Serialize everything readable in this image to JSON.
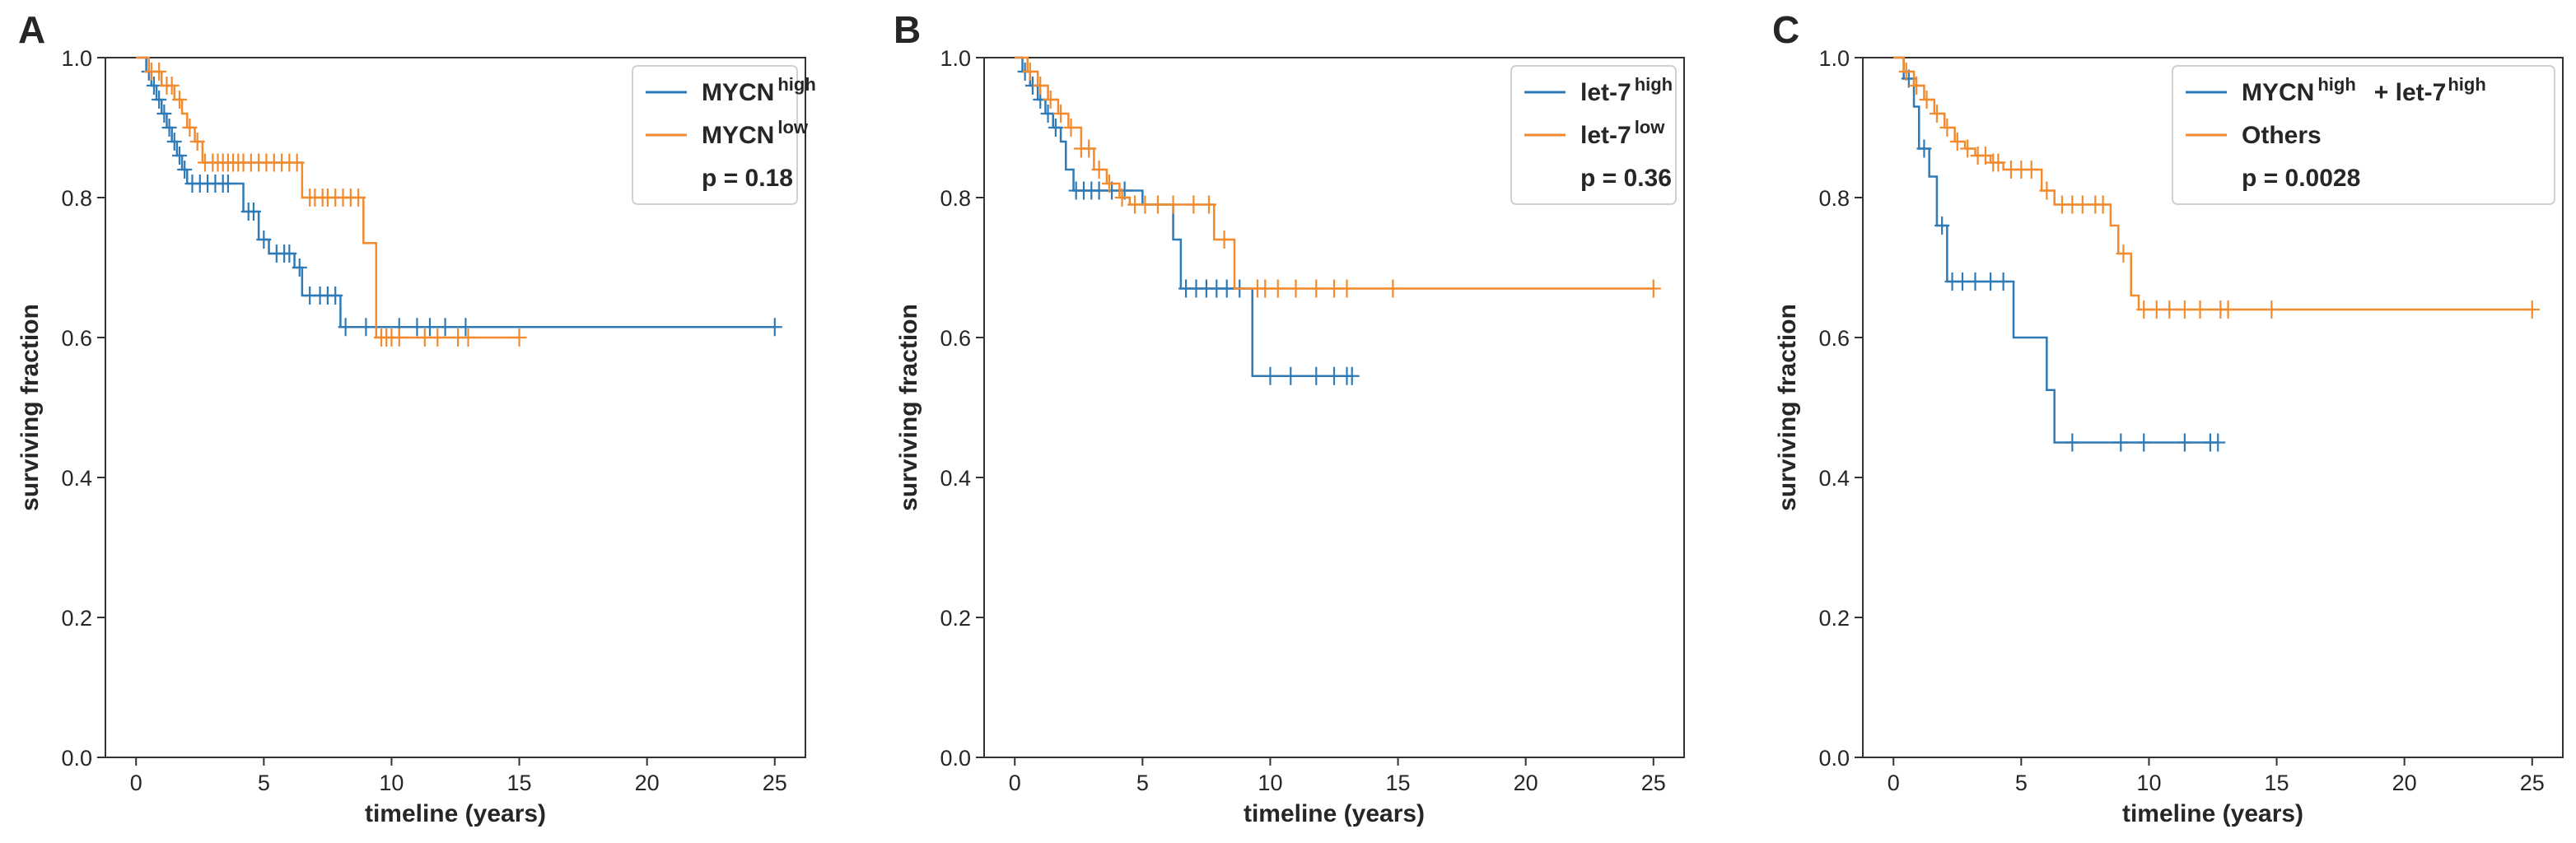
{
  "colors": {
    "high": "#2e7ab6",
    "low": "#f28a2e",
    "axis": "#333333"
  },
  "chart_data": [
    {
      "type": "line",
      "panel": "A",
      "xlabel": "timeline (years)",
      "ylabel": "surviving fraction",
      "xlim": [
        -1.2,
        26.2
      ],
      "ylim": [
        0.0,
        1.0
      ],
      "xticks": [
        0,
        5,
        10,
        15,
        20,
        25
      ],
      "yticks": [
        0.0,
        0.2,
        0.4,
        0.6,
        0.8,
        1.0
      ],
      "legend": {
        "position": "top-right",
        "entries": [
          {
            "main": "MYCN",
            "sup": "high",
            "color": "#2e7ab6"
          },
          {
            "main": "MYCN",
            "sup": "low",
            "color": "#f28a2e"
          },
          {
            "main": "p = 0.18"
          }
        ]
      },
      "series": [
        {
          "color": "#2e7ab6",
          "steps": [
            [
              0,
              1.0
            ],
            [
              0.4,
              0.98
            ],
            [
              0.6,
              0.96
            ],
            [
              0.8,
              0.94
            ],
            [
              1.0,
              0.92
            ],
            [
              1.2,
              0.9
            ],
            [
              1.4,
              0.88
            ],
            [
              1.6,
              0.86
            ],
            [
              1.8,
              0.84
            ],
            [
              2.0,
              0.82
            ],
            [
              4.2,
              0.78
            ],
            [
              4.8,
              0.74
            ],
            [
              5.2,
              0.72
            ],
            [
              6.2,
              0.7
            ],
            [
              6.5,
              0.66
            ],
            [
              8.0,
              0.615
            ],
            [
              25,
              0.615
            ]
          ],
          "censors": [
            0.5,
            0.7,
            0.9,
            1.1,
            1.3,
            1.5,
            1.7,
            1.9,
            2.2,
            2.5,
            2.8,
            3.1,
            3.4,
            3.6,
            4.4,
            4.6,
            5.0,
            5.5,
            5.8,
            6.0,
            6.4,
            6.8,
            7.2,
            7.5,
            7.8,
            8.2,
            9.0,
            10.3,
            11.0,
            11.5,
            12.1,
            12.9,
            25.0
          ]
        },
        {
          "color": "#f28a2e",
          "steps": [
            [
              0,
              1.0
            ],
            [
              0.5,
              0.98
            ],
            [
              1.0,
              0.96
            ],
            [
              1.5,
              0.94
            ],
            [
              1.8,
              0.92
            ],
            [
              2.0,
              0.9
            ],
            [
              2.3,
              0.88
            ],
            [
              2.6,
              0.85
            ],
            [
              6.5,
              0.8
            ],
            [
              8.9,
              0.735
            ],
            [
              9.4,
              0.6
            ],
            [
              15.0,
              0.6
            ]
          ],
          "censors": [
            0.6,
            0.9,
            1.2,
            1.4,
            1.7,
            2.1,
            2.4,
            2.7,
            3.0,
            3.2,
            3.4,
            3.6,
            3.8,
            4.0,
            4.2,
            4.5,
            4.8,
            5.1,
            5.4,
            5.7,
            6.0,
            6.3,
            6.8,
            7.0,
            7.3,
            7.5,
            7.8,
            8.1,
            8.4,
            8.7,
            9.6,
            9.8,
            10.0,
            10.3,
            11.3,
            11.8,
            12.6,
            13.0,
            15.0
          ]
        }
      ]
    },
    {
      "type": "line",
      "panel": "B",
      "xlabel": "timeline (years)",
      "ylabel": "surviving fraction",
      "xlim": [
        -1.2,
        26.2
      ],
      "ylim": [
        0.0,
        1.0
      ],
      "xticks": [
        0,
        5,
        10,
        15,
        20,
        25
      ],
      "yticks": [
        0.0,
        0.2,
        0.4,
        0.6,
        0.8,
        1.0
      ],
      "legend": {
        "position": "top-right",
        "entries": [
          {
            "main": "let-7",
            "sup": "high",
            "color": "#2e7ab6"
          },
          {
            "main": "let-7",
            "sup": "low",
            "color": "#f28a2e"
          },
          {
            "main": "p = 0.36"
          }
        ]
      },
      "series": [
        {
          "color": "#2e7ab6",
          "steps": [
            [
              0,
              1.0
            ],
            [
              0.3,
              0.98
            ],
            [
              0.6,
              0.96
            ],
            [
              0.9,
              0.94
            ],
            [
              1.2,
              0.92
            ],
            [
              1.5,
              0.9
            ],
            [
              1.8,
              0.88
            ],
            [
              2.0,
              0.84
            ],
            [
              2.3,
              0.81
            ],
            [
              5.0,
              0.79
            ],
            [
              6.2,
              0.74
            ],
            [
              6.5,
              0.67
            ],
            [
              9.3,
              0.545
            ],
            [
              13.2,
              0.545
            ]
          ],
          "censors": [
            0.4,
            0.7,
            1.0,
            1.3,
            1.6,
            2.4,
            2.7,
            3.0,
            3.3,
            3.8,
            4.3,
            6.7,
            7.1,
            7.5,
            7.9,
            8.3,
            8.8,
            10.0,
            10.8,
            11.8,
            12.5,
            13.0,
            13.2
          ]
        },
        {
          "color": "#f28a2e",
          "steps": [
            [
              0,
              1.0
            ],
            [
              0.5,
              0.98
            ],
            [
              0.9,
              0.96
            ],
            [
              1.3,
              0.94
            ],
            [
              1.7,
              0.92
            ],
            [
              2.1,
              0.9
            ],
            [
              2.6,
              0.87
            ],
            [
              3.1,
              0.84
            ],
            [
              3.6,
              0.82
            ],
            [
              4.1,
              0.8
            ],
            [
              4.5,
              0.79
            ],
            [
              7.8,
              0.74
            ],
            [
              8.6,
              0.67
            ],
            [
              25,
              0.67
            ]
          ],
          "censors": [
            0.6,
            1.0,
            1.4,
            1.8,
            2.2,
            2.6,
            2.9,
            3.3,
            3.7,
            4.2,
            4.7,
            5.1,
            5.6,
            6.2,
            7.0,
            7.6,
            8.2,
            9.5,
            9.8,
            10.3,
            11.0,
            11.8,
            12.5,
            13.0,
            14.8,
            25.0
          ]
        }
      ]
    },
    {
      "type": "line",
      "panel": "C",
      "xlabel": "timeline (years)",
      "ylabel": "surviving fraction",
      "xlim": [
        -1.2,
        26.2
      ],
      "ylim": [
        0.0,
        1.0
      ],
      "xticks": [
        0,
        5,
        10,
        15,
        20,
        25
      ],
      "yticks": [
        0.0,
        0.2,
        0.4,
        0.6,
        0.8,
        1.0
      ],
      "legend": {
        "position": "top-right",
        "entries": [
          {
            "main": "MYCN",
            "sup": "high",
            "tail": "+ let-7",
            "tailsup": "high",
            "color": "#2e7ab6"
          },
          {
            "main": "Others",
            "color": "#f28a2e"
          },
          {
            "main": "p = 0.0028"
          }
        ]
      },
      "series": [
        {
          "color": "#2e7ab6",
          "steps": [
            [
              0,
              1.0
            ],
            [
              0.4,
              0.97
            ],
            [
              0.8,
              0.93
            ],
            [
              1.0,
              0.87
            ],
            [
              1.4,
              0.83
            ],
            [
              1.7,
              0.76
            ],
            [
              2.1,
              0.68
            ],
            [
              4.7,
              0.6
            ],
            [
              6.0,
              0.525
            ],
            [
              6.3,
              0.45
            ],
            [
              12.7,
              0.45
            ]
          ],
          "censors": [
            0.6,
            1.2,
            1.9,
            2.3,
            2.7,
            3.2,
            3.8,
            4.3,
            7.0,
            8.9,
            9.8,
            11.4,
            12.4,
            12.7
          ]
        },
        {
          "color": "#f28a2e",
          "steps": [
            [
              0,
              1.0
            ],
            [
              0.4,
              0.98
            ],
            [
              0.8,
              0.96
            ],
            [
              1.2,
              0.94
            ],
            [
              1.6,
              0.92
            ],
            [
              2.0,
              0.9
            ],
            [
              2.4,
              0.88
            ],
            [
              2.8,
              0.87
            ],
            [
              3.2,
              0.86
            ],
            [
              3.8,
              0.85
            ],
            [
              4.3,
              0.84
            ],
            [
              5.8,
              0.81
            ],
            [
              6.3,
              0.79
            ],
            [
              8.5,
              0.76
            ],
            [
              8.8,
              0.72
            ],
            [
              9.3,
              0.66
            ],
            [
              9.6,
              0.64
            ],
            [
              25,
              0.64
            ]
          ],
          "censors": [
            0.5,
            0.9,
            1.3,
            1.7,
            2.1,
            2.5,
            2.9,
            3.3,
            3.6,
            3.9,
            4.1,
            4.6,
            5.0,
            5.4,
            6.0,
            6.6,
            7.0,
            7.4,
            7.9,
            8.2,
            9.0,
            9.8,
            10.3,
            10.8,
            11.4,
            12.0,
            12.8,
            13.1,
            14.8,
            25.0
          ]
        }
      ]
    }
  ]
}
